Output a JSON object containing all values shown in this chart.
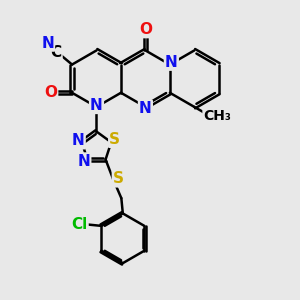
{
  "bg": "#e8e8e8",
  "bond_color": "#000000",
  "bond_lw": 1.8,
  "doff": 0.055,
  "colors": {
    "N": "#1010ee",
    "O": "#ee1010",
    "S": "#ccaa00",
    "Cl": "#00bb00",
    "C": "#000000"
  },
  "fs": 11
}
